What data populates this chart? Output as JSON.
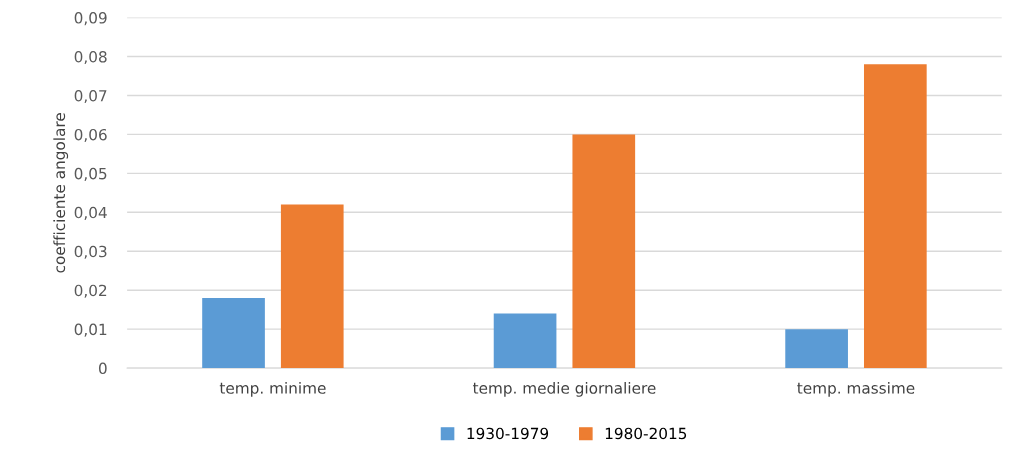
{
  "chart_data": {
    "type": "bar",
    "ylabel": "coefficiente angolare",
    "categories": [
      "temp. minime",
      "temp. medie giornaliere",
      "temp. massime"
    ],
    "series": [
      {
        "name": "1930-1979",
        "color": "#5b9bd5",
        "values": [
          0.018,
          0.014,
          0.01
        ]
      },
      {
        "name": "1980-2015",
        "color": "#ed7d31",
        "values": [
          0.042,
          0.06,
          0.078
        ]
      }
    ],
    "ylim": [
      0,
      0.09
    ],
    "yticks": [
      0,
      {
        "value": 0.01,
        "label": "0,01"
      },
      {
        "value": 0.02,
        "label": "0,02"
      },
      {
        "value": 0.03,
        "label": "0,03"
      },
      {
        "value": 0.04,
        "label": "0,04"
      },
      {
        "value": 0.05,
        "label": "0,05"
      },
      {
        "value": 0.06,
        "label": "0,06"
      },
      {
        "value": 0.07,
        "label": "0,07"
      },
      {
        "value": 0.08,
        "label": "0,08"
      },
      {
        "value": 0.09,
        "label": "0,09"
      }
    ],
    "grid": "y",
    "legend": "bottom"
  }
}
